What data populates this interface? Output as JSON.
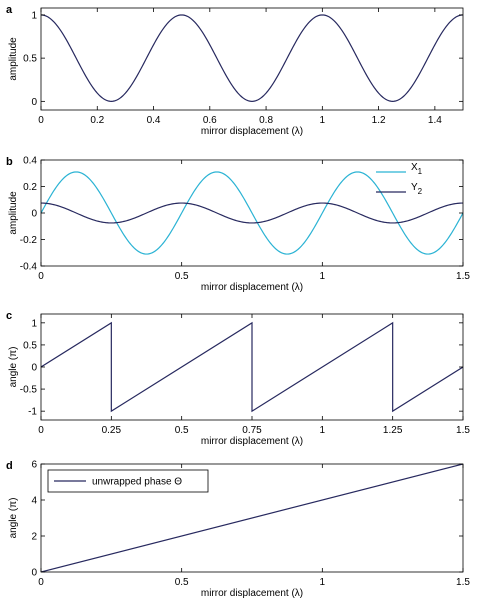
{
  "colors": {
    "dark": "#27295f",
    "cyan": "#2bb3d4"
  },
  "chart_data": [
    {
      "panel": "a",
      "type": "line",
      "xlabel": "mirror displacement (λ)",
      "ylabel": "amplitude",
      "xlim": [
        0,
        1.5
      ],
      "ylim": [
        -0.1,
        1.08
      ],
      "xticks": [
        0,
        0.2,
        0.4,
        0.6,
        0.8,
        1,
        1.2,
        1.4
      ],
      "xticklabels": [
        "0",
        "0.2",
        "0.4",
        "0.6",
        "0.8",
        "1",
        "1.2",
        "1.4"
      ],
      "yticks": [
        0,
        0.5,
        1
      ],
      "yticklabels": [
        "0",
        "0.5",
        "1"
      ],
      "series": [
        {
          "color": "#27295f",
          "x": [
            0,
            0.25,
            0.5,
            0.75,
            1,
            1.25,
            1.5
          ],
          "y": [
            1,
            0,
            1,
            0,
            1,
            0,
            1
          ]
        }
      ]
    },
    {
      "panel": "b",
      "type": "line",
      "xlabel": "mirror displacement (λ)",
      "ylabel": "amplitude",
      "xlim": [
        0,
        1.5
      ],
      "ylim": [
        -0.4,
        0.4
      ],
      "xticks": [
        0,
        0.5,
        1,
        1.5
      ],
      "xticklabels": [
        "0",
        "0.5",
        "1",
        "1.5"
      ],
      "yticks": [
        -0.4,
        -0.2,
        0,
        0.2,
        0.4
      ],
      "yticklabels": [
        "-0.4",
        "-0.2",
        "0",
        "0.2",
        "0.4"
      ],
      "legend_position": "top-right",
      "series": [
        {
          "name": "X",
          "sub": "1",
          "color": "#2bb3d4",
          "x": [
            0,
            0.125,
            0.375,
            0.625,
            0.875,
            1.125,
            1.375,
            1.5
          ],
          "y": [
            0,
            0.31,
            -0.31,
            0.31,
            -0.31,
            0.31,
            -0.31,
            0
          ]
        },
        {
          "name": "Y",
          "sub": "2",
          "color": "#27295f",
          "x": [
            0,
            0.25,
            0.5,
            0.75,
            1,
            1.25,
            1.5
          ],
          "y": [
            0.075,
            -0.075,
            0.075,
            -0.075,
            0.075,
            -0.075,
            0.075
          ]
        }
      ]
    },
    {
      "panel": "c",
      "type": "line",
      "xlabel": "mirror displacement (λ)",
      "ylabel": "angle (π)",
      "xlim": [
        0,
        1.5
      ],
      "ylim": [
        -1.2,
        1.2
      ],
      "xticks": [
        0,
        0.25,
        0.5,
        0.75,
        1,
        1.25,
        1.5
      ],
      "xticklabels": [
        "0",
        "0.25",
        "0.5",
        "0.75",
        "1",
        "1.25",
        "1.5"
      ],
      "yticks": [
        -1,
        -0.5,
        0,
        0.5,
        1
      ],
      "yticklabels": [
        "-1",
        "-0.5",
        "0",
        "0.5",
        "1"
      ],
      "series": [
        {
          "color": "#27295f",
          "x": [
            0,
            0.25,
            0.25,
            0.75,
            0.75,
            1.25,
            1.25,
            1.5
          ],
          "y": [
            0,
            1,
            -1,
            1,
            -1,
            1,
            -1,
            0
          ]
        }
      ]
    },
    {
      "panel": "d",
      "type": "line",
      "xlabel": "mirror displacement (λ)",
      "ylabel": "angle (π)",
      "xlim": [
        0,
        1.5
      ],
      "ylim": [
        0,
        6
      ],
      "xticks": [
        0,
        0.5,
        1,
        1.5
      ],
      "xticklabels": [
        "0",
        "0.5",
        "1",
        "1.5"
      ],
      "yticks": [
        0,
        2,
        4,
        6
      ],
      "yticklabels": [
        "0",
        "2",
        "4",
        "6"
      ],
      "legend_position": "top-left",
      "series": [
        {
          "name": "unwrapped phase Θ",
          "color": "#27295f",
          "x": [
            0,
            1.5
          ],
          "y": [
            0,
            6
          ]
        }
      ]
    }
  ]
}
